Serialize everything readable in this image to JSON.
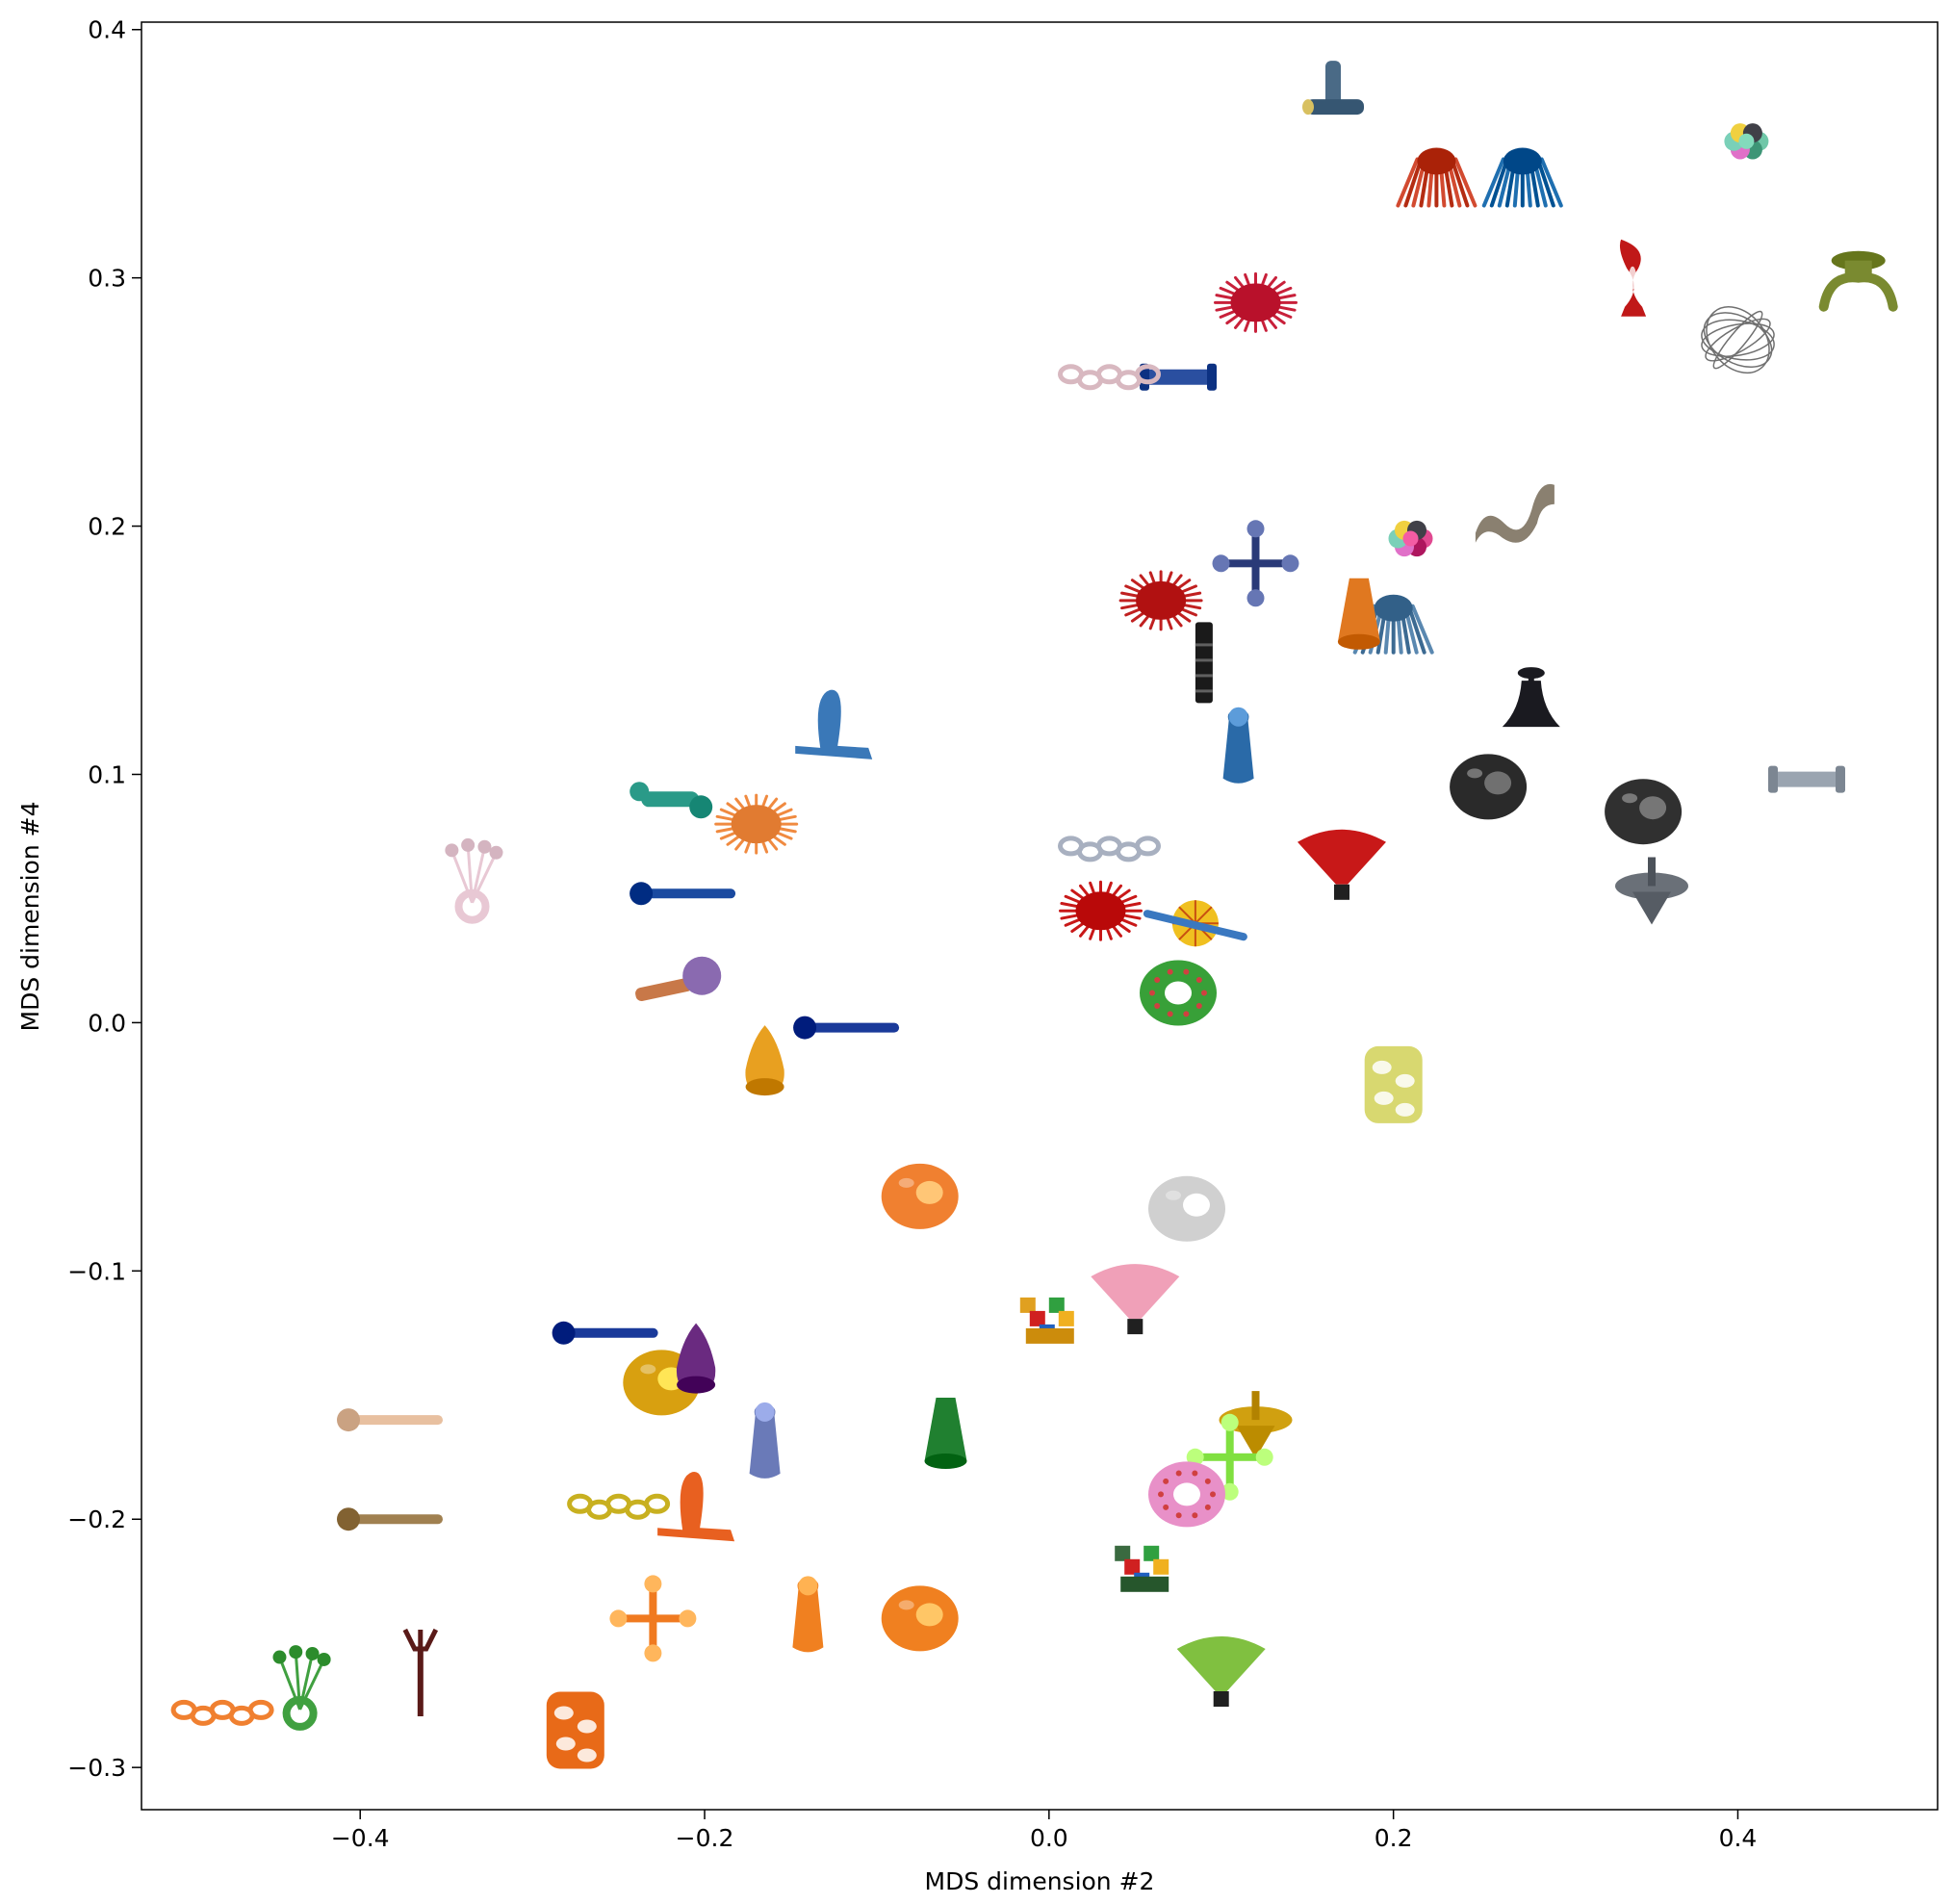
{
  "chart_data": {
    "type": "scatter",
    "title": "",
    "xlabel": "MDS dimension #2",
    "ylabel": "MDS dimension #4",
    "xlim": [
      -0.527,
      0.516
    ],
    "ylim": [
      -0.317,
      0.403
    ],
    "xticks": [
      {
        "value": -0.4,
        "label": "−0.4"
      },
      {
        "value": -0.2,
        "label": "−0.2"
      },
      {
        "value": 0.0,
        "label": "0.0"
      },
      {
        "value": 0.2,
        "label": "0.2"
      },
      {
        "value": 0.4,
        "label": "0.4"
      }
    ],
    "yticks": [
      {
        "value": -0.3,
        "label": "−0.3"
      },
      {
        "value": -0.2,
        "label": "−0.2"
      },
      {
        "value": -0.1,
        "label": "−0.1"
      },
      {
        "value": 0.0,
        "label": "0.0"
      },
      {
        "value": 0.1,
        "label": "0.1"
      },
      {
        "value": 0.2,
        "label": "0.2"
      },
      {
        "value": 0.3,
        "label": "0.3"
      },
      {
        "value": 0.4,
        "label": "0.4"
      }
    ],
    "grid": false,
    "legend": "none",
    "marker_style": "photographs of toy objects placed at each point",
    "points": [
      {
        "x": 0.165,
        "y": 0.37,
        "color": "#4a6a86",
        "shape": "tjoint"
      },
      {
        "x": 0.225,
        "y": 0.34,
        "color": "#d24a30",
        "shape": "mop"
      },
      {
        "x": 0.275,
        "y": 0.34,
        "color": "#1f6fb0",
        "shape": "mop"
      },
      {
        "x": 0.405,
        "y": 0.355,
        "color": "#6fc7a8",
        "shape": "cluster"
      },
      {
        "x": 0.12,
        "y": 0.29,
        "color": "#c8203a",
        "shape": "spiky"
      },
      {
        "x": 0.075,
        "y": 0.26,
        "color": "#2a4fa0",
        "shape": "bar"
      },
      {
        "x": 0.035,
        "y": 0.26,
        "color": "#d8b8c0",
        "shape": "chain"
      },
      {
        "x": 0.34,
        "y": 0.3,
        "color": "#c01818",
        "shape": "vase"
      },
      {
        "x": 0.47,
        "y": 0.3,
        "color": "#7a8a30",
        "shape": "spool"
      },
      {
        "x": 0.4,
        "y": 0.275,
        "color": "#707070",
        "shape": "wireball"
      },
      {
        "x": 0.21,
        "y": 0.195,
        "color": "#e04890",
        "shape": "cluster"
      },
      {
        "x": 0.27,
        "y": 0.205,
        "color": "#8a8070",
        "shape": "wave"
      },
      {
        "x": 0.12,
        "y": 0.185,
        "color": "#2a3a78",
        "shape": "jack"
      },
      {
        "x": 0.065,
        "y": 0.17,
        "color": "#c02020",
        "shape": "spiky"
      },
      {
        "x": 0.2,
        "y": 0.16,
        "color": "#5a88b0",
        "shape": "mop"
      },
      {
        "x": 0.18,
        "y": 0.165,
        "color": "#e07820",
        "shape": "cone"
      },
      {
        "x": 0.09,
        "y": 0.145,
        "color": "#1a1a1a",
        "shape": "tube"
      },
      {
        "x": 0.11,
        "y": 0.11,
        "color": "#2a6aa8",
        "shape": "bottle"
      },
      {
        "x": 0.28,
        "y": 0.13,
        "color": "#1a1a20",
        "shape": "bell"
      },
      {
        "x": 0.255,
        "y": 0.095,
        "color": "#2a2a2a",
        "shape": "ball"
      },
      {
        "x": 0.345,
        "y": 0.085,
        "color": "#303030",
        "shape": "ball"
      },
      {
        "x": 0.44,
        "y": 0.098,
        "color": "#9aa4b0",
        "shape": "bar"
      },
      {
        "x": 0.35,
        "y": 0.055,
        "color": "#6a7078",
        "shape": "top"
      },
      {
        "x": 0.17,
        "y": 0.065,
        "color": "#c81818",
        "shape": "fan"
      },
      {
        "x": -0.125,
        "y": 0.12,
        "color": "#3a78b8",
        "shape": "ring"
      },
      {
        "x": -0.22,
        "y": 0.09,
        "color": "#2a9a88",
        "shape": "bone"
      },
      {
        "x": -0.17,
        "y": 0.08,
        "color": "#f08a40",
        "shape": "spiky"
      },
      {
        "x": -0.335,
        "y": 0.06,
        "color": "#e8c8d4",
        "shape": "flower"
      },
      {
        "x": -0.21,
        "y": 0.052,
        "color": "#1a4aa0",
        "shape": "stick"
      },
      {
        "x": -0.215,
        "y": 0.015,
        "color": "#8a6ab0",
        "shape": "rattle"
      },
      {
        "x": -0.115,
        "y": -0.002,
        "color": "#1a3a9a",
        "shape": "stick"
      },
      {
        "x": -0.165,
        "y": -0.015,
        "color": "#e8a020",
        "shape": "pear"
      },
      {
        "x": 0.035,
        "y": 0.07,
        "color": "#a8b0c0",
        "shape": "chain"
      },
      {
        "x": 0.03,
        "y": 0.045,
        "color": "#c81818",
        "shape": "spiky"
      },
      {
        "x": 0.085,
        "y": 0.04,
        "color": "#f0c020",
        "shape": "wheel"
      },
      {
        "x": 0.075,
        "y": 0.012,
        "color": "#38a038",
        "shape": "donut"
      },
      {
        "x": 0.2,
        "y": -0.025,
        "color": "#d8d870",
        "shape": "cage"
      },
      {
        "x": -0.075,
        "y": -0.07,
        "color": "#f08030",
        "shape": "ball"
      },
      {
        "x": 0.08,
        "y": -0.075,
        "color": "#d0d0d0",
        "shape": "ball"
      },
      {
        "x": 0.0,
        "y": -0.12,
        "color": "#e0a020",
        "shape": "blocks"
      },
      {
        "x": 0.05,
        "y": -0.11,
        "color": "#f0a0b8",
        "shape": "fan"
      },
      {
        "x": -0.255,
        "y": -0.125,
        "color": "#1a3a9a",
        "shape": "stick"
      },
      {
        "x": -0.225,
        "y": -0.145,
        "color": "#d8a010",
        "shape": "ball"
      },
      {
        "x": -0.205,
        "y": -0.135,
        "color": "#6a2a80",
        "shape": "pear"
      },
      {
        "x": -0.38,
        "y": -0.16,
        "color": "#e8c0a0",
        "shape": "stick"
      },
      {
        "x": -0.165,
        "y": -0.17,
        "color": "#6a7ab8",
        "shape": "bottle"
      },
      {
        "x": -0.06,
        "y": -0.165,
        "color": "#208030",
        "shape": "cone"
      },
      {
        "x": 0.12,
        "y": -0.16,
        "color": "#d0a010",
        "shape": "top"
      },
      {
        "x": 0.105,
        "y": -0.175,
        "color": "#80e040",
        "shape": "jack"
      },
      {
        "x": 0.08,
        "y": -0.19,
        "color": "#e890c8",
        "shape": "donut"
      },
      {
        "x": -0.38,
        "y": -0.2,
        "color": "#a08050",
        "shape": "stick"
      },
      {
        "x": -0.205,
        "y": -0.195,
        "color": "#e86020",
        "shape": "ring"
      },
      {
        "x": -0.25,
        "y": -0.195,
        "color": "#c8b020",
        "shape": "chain"
      },
      {
        "x": 0.055,
        "y": -0.22,
        "color": "#3a6a40",
        "shape": "blocks"
      },
      {
        "x": -0.23,
        "y": -0.24,
        "color": "#f07a20",
        "shape": "jack"
      },
      {
        "x": -0.14,
        "y": -0.24,
        "color": "#f08020",
        "shape": "bottle"
      },
      {
        "x": -0.075,
        "y": -0.24,
        "color": "#f08020",
        "shape": "ball"
      },
      {
        "x": 0.1,
        "y": -0.26,
        "color": "#80c040",
        "shape": "fan"
      },
      {
        "x": -0.48,
        "y": -0.278,
        "color": "#f08030",
        "shape": "chain"
      },
      {
        "x": -0.435,
        "y": -0.265,
        "color": "#40a040",
        "shape": "flower"
      },
      {
        "x": -0.365,
        "y": -0.26,
        "color": "#5a1a18",
        "shape": "fork"
      },
      {
        "x": -0.275,
        "y": -0.285,
        "color": "#e86a18",
        "shape": "cage"
      }
    ]
  }
}
